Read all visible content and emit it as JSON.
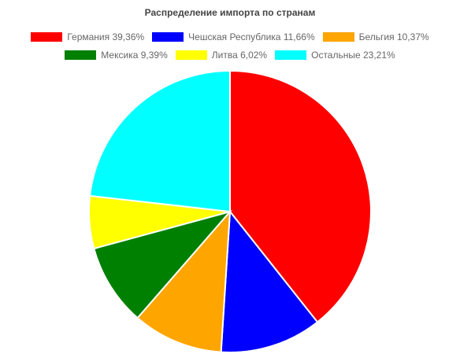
{
  "chart_data": {
    "type": "pie",
    "title": "Распределение импорта по странам",
    "legend_position": "top",
    "slices": [
      {
        "label": "Германия 39,36%",
        "value": 39.36,
        "color": "#ff0000"
      },
      {
        "label": "Чешская Республика 11,66%",
        "value": 11.66,
        "color": "#0000ff"
      },
      {
        "label": "Бельгия 10,37%",
        "value": 10.37,
        "color": "#ffa500"
      },
      {
        "label": "Мексика 9,39%",
        "value": 9.39,
        "color": "#008000"
      },
      {
        "label": "Литва 6,02%",
        "value": 6.02,
        "color": "#ffff00"
      },
      {
        "label": "Остальные  23,21%",
        "value": 23.21,
        "color": "#00ffff"
      }
    ]
  }
}
